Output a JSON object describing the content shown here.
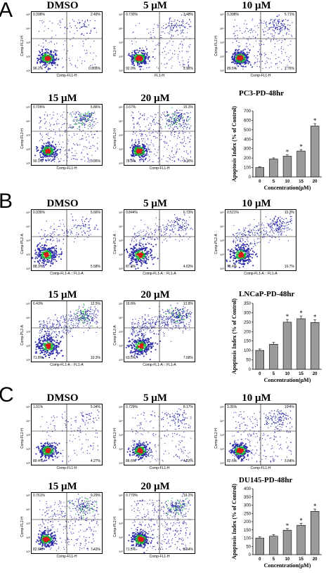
{
  "panels": [
    {
      "letter": "A",
      "cell_line_label": "PC3-PD-48hr",
      "y_axis_label": "Comp-FL2-H",
      "x_axis_label": "Comp-FL1-H",
      "plots": [
        {
          "title": "DMSO",
          "ylabel": "Comp-FL2-H",
          "xlabel": "Comp-FL1-H",
          "ul": "0.398%",
          "ur": "2.49%",
          "ll": "96.2%",
          "lr": "0.856%"
        },
        {
          "title": "5 μM",
          "ylabel": "FL2-H",
          "xlabel": "FL1-H",
          "ul": "0.730%",
          "ur": "3.48%",
          "ll": "92.9%",
          "lr": "2.92%"
        },
        {
          "title": "10 μM",
          "ylabel": "Comp-FL2-H",
          "xlabel": "Comp-FL1-H",
          "ul": "0.398%",
          "ur": "5.71%",
          "ll": "89.5%",
          "lr": "1.76%"
        },
        {
          "title": "15 μM",
          "ylabel": "Comp-FL2-H",
          "xlabel": "Comp-FL1-H",
          "ul": "0.706%",
          "ur": "5.86%",
          "ll": "90.1%",
          "lr": "3.35%"
        },
        {
          "title": "20 μM",
          "ylabel": "Comp-FL2-H",
          "xlabel": "Comp-FL1-H",
          "ul": "3.67%",
          "ur": "15.3%",
          "ll": "78.5%",
          "lr": "3.10%"
        }
      ]
    },
    {
      "letter": "B",
      "cell_line_label": "LNCaP-PD-48hr",
      "plots": [
        {
          "title": "DMSO",
          "ylabel": "Comp-PL2-A",
          "xlabel": "Comp-FL1-A :: FL1-A",
          "ul": "0.335%",
          "ur": "5.66%",
          "ll": "88.3%",
          "lr": "5.58%"
        },
        {
          "title": "5 μM",
          "ylabel": "Comp-PL2-A",
          "xlabel": "Comp-FL1-A :: FL1-A",
          "ul": "0.844%",
          "ur": "6.73%",
          "ll": "87.8%",
          "lr": "4.63%"
        },
        {
          "title": "10 μM",
          "ylabel": "Comp-PL2-A",
          "xlabel": "Comp-FL1-A :: FL1-A",
          "ul": "0.521%",
          "ur": "10.3%",
          "ll": "78.4%",
          "lr": "10.7%"
        },
        {
          "title": "15 μM",
          "ylabel": "Comp-PL2-A",
          "xlabel": "Comp-FL1-A :: FL1-A",
          "ul": "6.43%",
          "ur": "12.5%",
          "ll": "71.8%",
          "lr": "10.3%"
        },
        {
          "title": "20 μM",
          "ylabel": "Comp-FL2-A",
          "xlabel": "Comp-FL1-A :: FL1-A",
          "ul": "16.8%",
          "ur": "13.8%",
          "ll": "63.5%",
          "lr": "7.68%"
        }
      ]
    },
    {
      "letter": "C",
      "cell_line_label": "DU145-PD-48hr",
      "plots": [
        {
          "title": "DMSO",
          "ylabel": "Comp-FL2-H",
          "xlabel": "Comp-FL1-H",
          "ul": "1.01%",
          "ur": "5.34%",
          "ll": "89.4%",
          "lr": "4.27%"
        },
        {
          "title": "5 μM",
          "ylabel": "Comp-FL2-H",
          "xlabel": "Comp-FL1-H",
          "ul": "0.729%",
          "ur": "8.17%",
          "ll": "86.6%",
          "lr": "4.53%"
        },
        {
          "title": "10 μM",
          "ylabel": "Comp-FL2-H",
          "xlabel": "Comp-FL1-H",
          "ul": "3.35%",
          "ur": "10.4%",
          "ll": "82.6%",
          "lr": "3.64%"
        },
        {
          "title": "15 μM",
          "ylabel": "Comp-FL2-H",
          "xlabel": "Comp-FL1-H",
          "ul": "0.761%",
          "ur": "9.29%",
          "ll": "82.6%",
          "lr": "7.43%"
        },
        {
          "title": "20 μM",
          "ylabel": "Comp-FL2-H",
          "xlabel": "Comp-FL1-H",
          "ul": "0.770%",
          "ur": "19.2%",
          "ll": "71.5%",
          "lr": "8.54%"
        }
      ]
    }
  ],
  "chart_data": [
    {
      "type": "bar",
      "title": "PC3-PD-48hr",
      "categories": [
        "0",
        "5",
        "10",
        "15",
        "20"
      ],
      "values": [
        100,
        190,
        220,
        275,
        540
      ],
      "significant": [
        false,
        false,
        true,
        true,
        true
      ],
      "ylabel": "Apoptosis Index (% of Control)",
      "xlabel": "Concentration(μM)",
      "ylim": [
        0,
        700
      ],
      "yticks": [
        0,
        100,
        200,
        300,
        400,
        500,
        600,
        700
      ]
    },
    {
      "type": "bar",
      "title": "LNCaP-PD-48hr",
      "categories": [
        "0",
        "5",
        "10",
        "15",
        "20"
      ],
      "values": [
        100,
        133,
        250,
        268,
        248
      ],
      "significant": [
        false,
        false,
        true,
        true,
        true
      ],
      "ylabel": "Apoptosis Index (% of Control)",
      "xlabel": "Concentration(μM)",
      "ylim": [
        0,
        350
      ],
      "yticks": [
        0,
        50,
        100,
        150,
        200,
        250,
        300,
        350
      ]
    },
    {
      "type": "bar",
      "title": "DU145-PD-48hr",
      "categories": [
        "0",
        "5",
        "10",
        "15",
        "20"
      ],
      "values": [
        100,
        112,
        148,
        178,
        262
      ],
      "significant": [
        false,
        false,
        true,
        true,
        true
      ],
      "ylabel": "Apoptosis Index (% of Control)",
      "xlabel": "Concentration(μM)",
      "ylim": [
        0,
        400
      ],
      "yticks": [
        0,
        50,
        100,
        150,
        200,
        250,
        300,
        350,
        400
      ]
    }
  ],
  "colors": {
    "density_low": "#2a2aa8",
    "density_mid": "#18b838",
    "density_high": "#e01818",
    "bar_fill": "#9a9a9a"
  }
}
